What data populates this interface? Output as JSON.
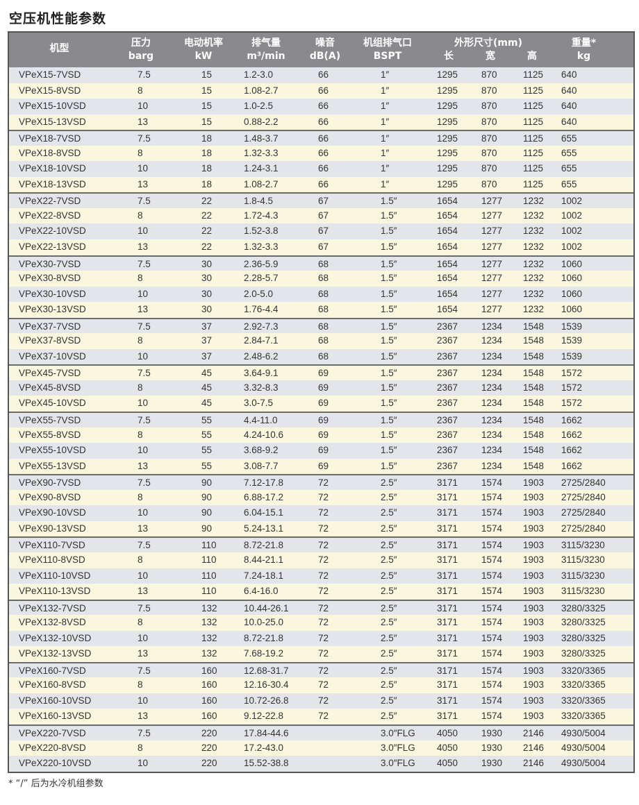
{
  "title": "空压机性能参数",
  "header": {
    "model": "机型",
    "pressure": "压力",
    "pressure_unit": "barg",
    "power": "电动机率",
    "power_unit": "kW",
    "flow": "排气量",
    "flow_unit": "m³/min",
    "noise": "噪音",
    "noise_unit": "dB(A)",
    "outlet": "机组排气口",
    "outlet_unit": "BSPT",
    "dims": "外形尺寸(mm)",
    "length": "长",
    "width": "宽",
    "height": "高",
    "weight": "重量*",
    "weight_unit": "kg"
  },
  "rows": [
    [
      "VPeX15-7VSD",
      "7.5",
      "15",
      "1.2-3.0",
      "66",
      "1″",
      "1295",
      "870",
      "1125",
      "640"
    ],
    [
      "VPeX15-8VSD",
      "8",
      "15",
      "1.08-2.7",
      "66",
      "1″",
      "1295",
      "870",
      "1125",
      "640"
    ],
    [
      "VPeX15-10VSD",
      "10",
      "15",
      "1.0-2.5",
      "66",
      "1″",
      "1295",
      "870",
      "1125",
      "640"
    ],
    [
      "VPeX15-13VSD",
      "13",
      "15",
      "0.88-2.2",
      "66",
      "1″",
      "1295",
      "870",
      "1125",
      "640"
    ],
    [
      "VPeX18-7VSD",
      "7.5",
      "18",
      "1.48-3.7",
      "66",
      "1″",
      "1295",
      "870",
      "1125",
      "655"
    ],
    [
      "VPeX18-8VSD",
      "8",
      "18",
      "1.32-3.3",
      "66",
      "1″",
      "1295",
      "870",
      "1125",
      "655"
    ],
    [
      "VPeX18-10VSD",
      "10",
      "18",
      "1.24-3.1",
      "66",
      "1″",
      "1295",
      "870",
      "1125",
      "655"
    ],
    [
      "VPeX18-13VSD",
      "13",
      "18",
      "1.08-2.7",
      "66",
      "1″",
      "1295",
      "870",
      "1125",
      "655"
    ],
    [
      "VPeX22-7VSD",
      "7.5",
      "22",
      "1.8-4.5",
      "67",
      "1.5″",
      "1654",
      "1277",
      "1232",
      "1002"
    ],
    [
      "VPeX22-8VSD",
      "8",
      "22",
      "1.72-4.3",
      "67",
      "1.5″",
      "1654",
      "1277",
      "1232",
      "1002"
    ],
    [
      "VPeX22-10VSD",
      "10",
      "22",
      "1.52-3.8",
      "67",
      "1.5″",
      "1654",
      "1277",
      "1232",
      "1002"
    ],
    [
      "VPeX22-13VSD",
      "13",
      "22",
      "1.32-3.3",
      "67",
      "1.5″",
      "1654",
      "1277",
      "1232",
      "1002"
    ],
    [
      "VPeX30-7VSD",
      "7.5",
      "30",
      "2.36-5.9",
      "68",
      "1.5″",
      "1654",
      "1277",
      "1232",
      "1060"
    ],
    [
      "VPeX30-8VSD",
      "8",
      "30",
      "2.28-5.7",
      "68",
      "1.5″",
      "1654",
      "1277",
      "1232",
      "1060"
    ],
    [
      "VPeX30-10VSD",
      "10",
      "30",
      "2.0-5.0",
      "68",
      "1.5″",
      "1654",
      "1277",
      "1232",
      "1060"
    ],
    [
      "VPeX30-13VSD",
      "13",
      "30",
      "1.76-4.4",
      "68",
      "1.5″",
      "1654",
      "1277",
      "1232",
      "1060"
    ],
    [
      "VPeX37-7VSD",
      "7.5",
      "37",
      "2.92-7.3",
      "68",
      "1.5″",
      "2367",
      "1234",
      "1548",
      "1539"
    ],
    [
      "VPeX37-8VSD",
      "8",
      "37",
      "2.84-7.1",
      "68",
      "1.5″",
      "2367",
      "1234",
      "1548",
      "1539"
    ],
    [
      "VPeX37-10VSD",
      "10",
      "37",
      "2.48-6.2",
      "68",
      "1.5″",
      "2367",
      "1234",
      "1548",
      "1539"
    ],
    [
      "VPeX45-7VSD",
      "7.5",
      "45",
      "3.64-9.1",
      "69",
      "1.5″",
      "2367",
      "1234",
      "1548",
      "1572"
    ],
    [
      "VPeX45-8VSD",
      "8",
      "45",
      "3.32-8.3",
      "69",
      "1.5″",
      "2367",
      "1234",
      "1548",
      "1572"
    ],
    [
      "VPeX45-10VSD",
      "10",
      "45",
      "3.0-7.5",
      "69",
      "1.5″",
      "2367",
      "1234",
      "1548",
      "1572"
    ],
    [
      "VPeX55-7VSD",
      "7.5",
      "55",
      "4.4-11.0",
      "69",
      "1.5″",
      "2367",
      "1234",
      "1548",
      "1662"
    ],
    [
      "VPeX55-8VSD",
      "8",
      "55",
      "4.24-10.6",
      "69",
      "1.5″",
      "2367",
      "1234",
      "1548",
      "1662"
    ],
    [
      "VPeX55-10VSD",
      "10",
      "55",
      "3.68-9.2",
      "69",
      "1.5″",
      "2367",
      "1234",
      "1548",
      "1662"
    ],
    [
      "VPeX55-13VSD",
      "13",
      "55",
      "3.08-7.7",
      "69",
      "1.5″",
      "2367",
      "1234",
      "1548",
      "1662"
    ],
    [
      "VPeX90-7VSD",
      "7.5",
      "90",
      "7.12-17.8",
      "72",
      "2.5″",
      "3171",
      "1574",
      "1903",
      "2725/2840"
    ],
    [
      "VPeX90-8VSD",
      "8",
      "90",
      "6.88-17.2",
      "72",
      "2.5″",
      "3171",
      "1574",
      "1903",
      "2725/2840"
    ],
    [
      "VPeX90-10VSD",
      "10",
      "90",
      "6.04-15.1",
      "72",
      "2.5″",
      "3171",
      "1574",
      "1903",
      "2725/2840"
    ],
    [
      "VPeX90-13VSD",
      "13",
      "90",
      "5.24-13.1",
      "72",
      "2.5″",
      "3171",
      "1574",
      "1903",
      "2725/2840"
    ],
    [
      "VPeX110-7VSD",
      "7.5",
      "110",
      "8.72-21.8",
      "72",
      "2.5″",
      "3171",
      "1574",
      "1903",
      "3115/3230"
    ],
    [
      "VPeX110-8VSD",
      "8",
      "110",
      "8.44-21.1",
      "72",
      "2.5″",
      "3171",
      "1574",
      "1903",
      "3115/3230"
    ],
    [
      "VPeX110-10VSD",
      "10",
      "110",
      "7.24-18.1",
      "72",
      "2.5″",
      "3171",
      "1574",
      "1903",
      "3115/3230"
    ],
    [
      "VPeX110-13VSD",
      "13",
      "110",
      "6.4-16.0",
      "72",
      "2.5″",
      "3171",
      "1574",
      "1903",
      "3115/3230"
    ],
    [
      "VPeX132-7VSD",
      "7.5",
      "132",
      "10.44-26.1",
      "72",
      "2.5″",
      "3171",
      "1574",
      "1903",
      "3280/3325"
    ],
    [
      "VPeX132-8VSD",
      "8",
      "132",
      "10.0-25.0",
      "72",
      "2.5″",
      "3171",
      "1574",
      "1903",
      "3280/3325"
    ],
    [
      "VPeX132-10VSD",
      "10",
      "132",
      "8.72-21.8",
      "72",
      "2.5″",
      "3171",
      "1574",
      "1903",
      "3280/3325"
    ],
    [
      "VPeX132-13VSD",
      "13",
      "132",
      "7.68-19.2",
      "72",
      "2.5″",
      "3171",
      "1574",
      "1903",
      "3280/3325"
    ],
    [
      "VPeX160-7VSD",
      "7.5",
      "160",
      "12.68-31.7",
      "72",
      "2.5″",
      "3171",
      "1574",
      "1903",
      "3320/3365"
    ],
    [
      "VPeX160-8VSD",
      "8",
      "160",
      "12.16-30.4",
      "72",
      "2.5″",
      "3171",
      "1574",
      "1903",
      "3320/3365"
    ],
    [
      "VPeX160-10VSD",
      "10",
      "160",
      "10.72-26.8",
      "72",
      "2.5″",
      "3171",
      "1574",
      "1903",
      "3320/3365"
    ],
    [
      "VPeX160-13VSD",
      "13",
      "160",
      "9.12-22.8",
      "72",
      "2.5″",
      "3171",
      "1574",
      "1903",
      "3320/3365"
    ],
    [
      "VPeX220-7VSD",
      "7.5",
      "220",
      "17.84-44.6",
      "",
      "3.0″FLG",
      "4050",
      "1930",
      "2146",
      "4930/5004"
    ],
    [
      "VPeX220-8VSD",
      "8",
      "220",
      "17.2-43.0",
      "",
      "3.0″FLG",
      "4050",
      "1930",
      "2146",
      "4930/5004"
    ],
    [
      "VPeX220-10VSD",
      "10",
      "220",
      "15.52-38.8",
      "",
      "3.0″FLG",
      "4050",
      "1930",
      "2146",
      "4930/5004"
    ]
  ],
  "group_starts": [
    0,
    4,
    8,
    12,
    16,
    19,
    22,
    26,
    30,
    34,
    38,
    42
  ],
  "footnote": "* “/” 后为水冷机组参数"
}
